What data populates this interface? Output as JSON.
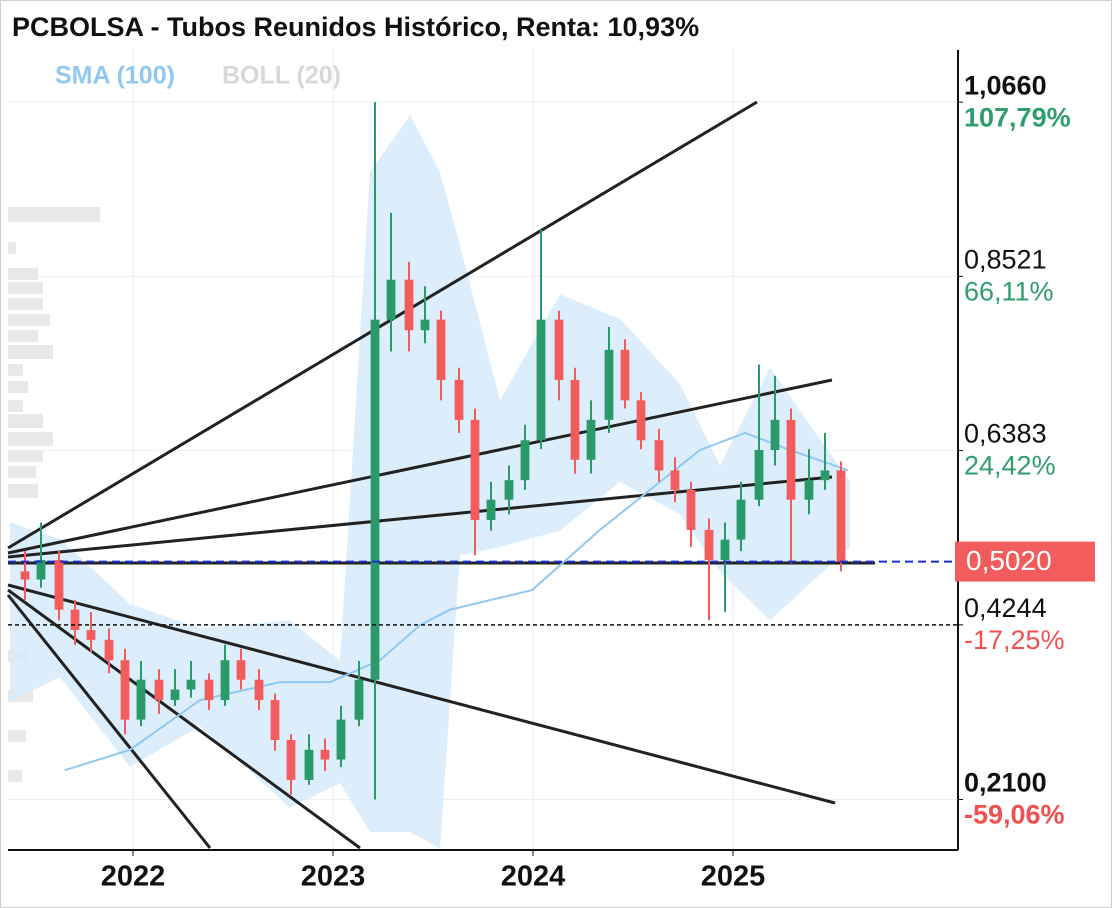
{
  "chart_data": {
    "type": "candlestick",
    "title": "PCBOLSA - Tubos Reunidos Histórico, Renta: 10,93%",
    "xlim": [
      2021.375,
      2026.125
    ],
    "xticks": [
      2022,
      2023,
      2024,
      2025
    ],
    "ylim": [
      0.148,
      1.13
    ],
    "yticks": [
      {
        "value": 1.066,
        "label": "1,0660"
      },
      {
        "value": 0.8521,
        "label": "0,8521"
      },
      {
        "value": 0.6383,
        "label": "0,6383"
      },
      {
        "value": 0.4244,
        "label": "0,4244"
      },
      {
        "value": 0.21,
        "label": "0,2100"
      }
    ],
    "ytick_changes": [
      "107,79%",
      "66,11%",
      "24,42%",
      "-17,25%",
      "-59,06%"
    ],
    "last_price": {
      "value": 0.502,
      "label": "0,5020"
    },
    "grid": true,
    "up_color": "#2b9a6a",
    "down_color": "#f25c5c",
    "x": [
      2021.46,
      2021.54,
      2021.63,
      2021.71,
      2021.79,
      2021.88,
      2021.96,
      2022.04,
      2022.13,
      2022.21,
      2022.29,
      2022.38,
      2022.46,
      2022.54,
      2022.63,
      2022.71,
      2022.79,
      2022.88,
      2022.96,
      2023.04,
      2023.13,
      2023.21,
      2023.29,
      2023.38,
      2023.46,
      2023.54,
      2023.63,
      2023.71,
      2023.79,
      2023.88,
      2023.96,
      2024.04,
      2024.13,
      2024.21,
      2024.29,
      2024.38,
      2024.46,
      2024.54,
      2024.63,
      2024.71,
      2024.79,
      2024.88,
      2024.96,
      2025.04,
      2025.13,
      2025.21,
      2025.29,
      2025.38,
      2025.46,
      2025.54
    ],
    "open": [
      0.49,
      0.48,
      0.504,
      0.443,
      0.418,
      0.406,
      0.381,
      0.308,
      0.357,
      0.332,
      0.345,
      0.357,
      0.332,
      0.381,
      0.357,
      0.332,
      0.283,
      0.234,
      0.271,
      0.259,
      0.308,
      0.357,
      0.799,
      0.848,
      0.786,
      0.799,
      0.725,
      0.676,
      0.553,
      0.578,
      0.602,
      0.651,
      0.799,
      0.725,
      0.627,
      0.676,
      0.762,
      0.7,
      0.651,
      0.614,
      0.59,
      0.541,
      0.504,
      0.529,
      0.578,
      0.639,
      0.676,
      0.578,
      0.602,
      0.614
    ],
    "high": [
      0.515,
      0.55,
      0.515,
      0.455,
      0.44,
      0.42,
      0.395,
      0.38,
      0.37,
      0.37,
      0.38,
      0.365,
      0.4,
      0.395,
      0.37,
      0.34,
      0.29,
      0.29,
      0.285,
      0.325,
      0.38,
      1.066,
      0.93,
      0.87,
      0.84,
      0.81,
      0.74,
      0.69,
      0.6,
      0.62,
      0.67,
      0.909,
      0.81,
      0.74,
      0.7,
      0.79,
      0.775,
      0.71,
      0.665,
      0.63,
      0.6,
      0.555,
      0.55,
      0.6,
      0.744,
      0.73,
      0.69,
      0.64,
      0.66,
      0.625
    ],
    "low": [
      0.455,
      0.47,
      0.43,
      0.4,
      0.39,
      0.365,
      0.29,
      0.3,
      0.315,
      0.325,
      0.335,
      0.32,
      0.325,
      0.345,
      0.32,
      0.27,
      0.216,
      0.228,
      0.245,
      0.25,
      0.3,
      0.21,
      0.76,
      0.76,
      0.77,
      0.7,
      0.66,
      0.51,
      0.54,
      0.56,
      0.59,
      0.64,
      0.7,
      0.61,
      0.61,
      0.66,
      0.69,
      0.64,
      0.6,
      0.575,
      0.52,
      0.43,
      0.44,
      0.515,
      0.57,
      0.62,
      0.5,
      0.56,
      0.59,
      0.49
    ],
    "close": [
      0.48,
      0.504,
      0.443,
      0.418,
      0.406,
      0.381,
      0.308,
      0.357,
      0.332,
      0.345,
      0.357,
      0.332,
      0.381,
      0.357,
      0.332,
      0.283,
      0.234,
      0.271,
      0.259,
      0.308,
      0.357,
      0.799,
      0.848,
      0.786,
      0.799,
      0.725,
      0.676,
      0.553,
      0.578,
      0.602,
      0.651,
      0.799,
      0.725,
      0.627,
      0.676,
      0.762,
      0.7,
      0.651,
      0.614,
      0.59,
      0.541,
      0.504,
      0.529,
      0.578,
      0.639,
      0.676,
      0.578,
      0.602,
      0.614,
      0.502
    ],
    "sma": {
      "name": "SMA (100)",
      "color": "#90c8f0",
      "x": [
        2021.66,
        2021.985,
        2022.335,
        2022.735,
        2022.985,
        2023.235,
        2023.435,
        2023.585,
        2023.995,
        2024.335,
        2024.585,
        2024.835,
        2025.06,
        2025.285,
        2025.575
      ],
      "values": [
        0.246,
        0.271,
        0.332,
        0.354,
        0.354,
        0.381,
        0.424,
        0.443,
        0.467,
        0.541,
        0.59,
        0.639,
        0.66,
        0.639,
        0.614
      ]
    },
    "boll": {
      "name": "BOLL (20)",
      "color": "#d8d8d8",
      "fill": "#d6ebfa",
      "x": [
        2021.385,
        2021.635,
        2021.985,
        2022.335,
        2022.785,
        2023.035,
        2023.185,
        2023.385,
        2023.535,
        2023.635,
        2023.835,
        2024.135,
        2024.435,
        2024.735,
        2024.935,
        2025.185,
        2025.585
      ],
      "upper": [
        0.55,
        0.53,
        0.45,
        0.42,
        0.43,
        0.38,
        0.98,
        1.05,
        0.98,
        0.89,
        0.7,
        0.83,
        0.8,
        0.72,
        0.62,
        0.74,
        0.6
      ],
      "lower": [
        0.33,
        0.36,
        0.25,
        0.3,
        0.2,
        0.23,
        0.17,
        0.17,
        0.15,
        0.51,
        0.52,
        0.54,
        0.6,
        0.56,
        0.49,
        0.43,
        0.52
      ]
    }
  }
}
